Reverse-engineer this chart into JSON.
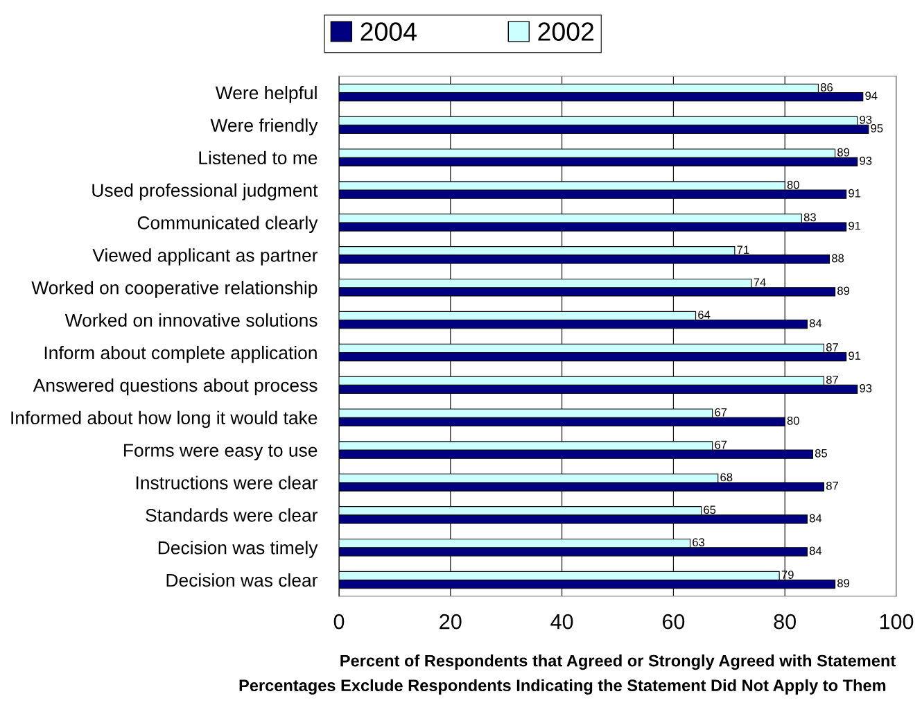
{
  "chart_data": {
    "type": "bar",
    "orientation": "horizontal",
    "categories": [
      "Were helpful",
      "Were friendly",
      "Listened to me",
      "Used professional judgment",
      "Communicated clearly",
      "Viewed applicant as partner",
      "Worked on cooperative relationship",
      "Worked on innovative solutions",
      "Inform about complete application",
      "Answered questions about process",
      "Informed about how long it would take",
      "Forms were easy to use",
      "Instructions were clear",
      "Standards were clear",
      "Decision was timely",
      "Decision was clear"
    ],
    "series": [
      {
        "name": "2004",
        "color": "#000080",
        "values": [
          94,
          95,
          93,
          91,
          91,
          88,
          89,
          84,
          91,
          93,
          80,
          85,
          87,
          84,
          84,
          89
        ]
      },
      {
        "name": "2002",
        "color": "#ccffff",
        "values": [
          86,
          93,
          89,
          80,
          83,
          71,
          74,
          64,
          87,
          87,
          67,
          67,
          68,
          65,
          63,
          79
        ]
      }
    ],
    "xlim": [
      0,
      100
    ],
    "xticks": [
      0,
      20,
      40,
      60,
      80,
      100
    ],
    "xlabel": "Percent of Respondents that Agreed or Strongly Agreed with Statement",
    "annotations": [
      "Percentages Exclude Respondents Indicating the Statement Did Not Apply to Them"
    ],
    "data_labels": true,
    "grid": "x",
    "legend": "top"
  }
}
